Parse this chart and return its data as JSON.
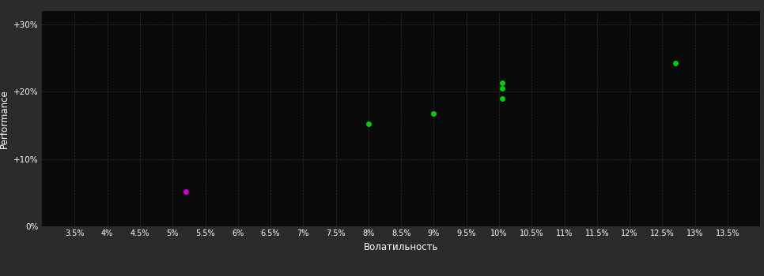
{
  "background_color": "#2b2b2b",
  "plot_bg_color": "#0a0a0a",
  "grid_color": "#404040",
  "text_color": "#ffffff",
  "xlabel": "Волатильность",
  "ylabel": "Performance",
  "xlim": [
    0.03,
    0.14
  ],
  "ylim": [
    0.0,
    0.32
  ],
  "xticks": [
    0.035,
    0.04,
    0.045,
    0.05,
    0.055,
    0.06,
    0.065,
    0.07,
    0.075,
    0.08,
    0.085,
    0.09,
    0.095,
    0.1,
    0.105,
    0.11,
    0.115,
    0.12,
    0.125,
    0.13,
    0.135
  ],
  "xtick_labels": [
    "3.5%",
    "4%",
    "4.5%",
    "5%",
    "5.5%",
    "6%",
    "6.5%",
    "7%",
    "7.5%",
    "8%",
    "8.5%",
    "9%",
    "9.5%",
    "10%",
    "10.5%",
    "11%",
    "11.5%",
    "12%",
    "12.5%",
    "13%",
    "13.5%"
  ],
  "yticks": [
    0.0,
    0.1,
    0.2,
    0.3
  ],
  "ytick_labels": [
    "0%",
    "+10%",
    "+20%",
    "+30%"
  ],
  "green_points": [
    [
      0.08,
      0.152
    ],
    [
      0.09,
      0.168
    ],
    [
      0.1005,
      0.213
    ],
    [
      0.1005,
      0.205
    ],
    [
      0.1005,
      0.19
    ],
    [
      0.127,
      0.243
    ]
  ],
  "magenta_points": [
    [
      0.052,
      0.052
    ]
  ],
  "green_color": "#00cc00",
  "magenta_color": "#cc00cc",
  "point_size": 25,
  "figsize": [
    9.66,
    3.5
  ],
  "dpi": 100
}
